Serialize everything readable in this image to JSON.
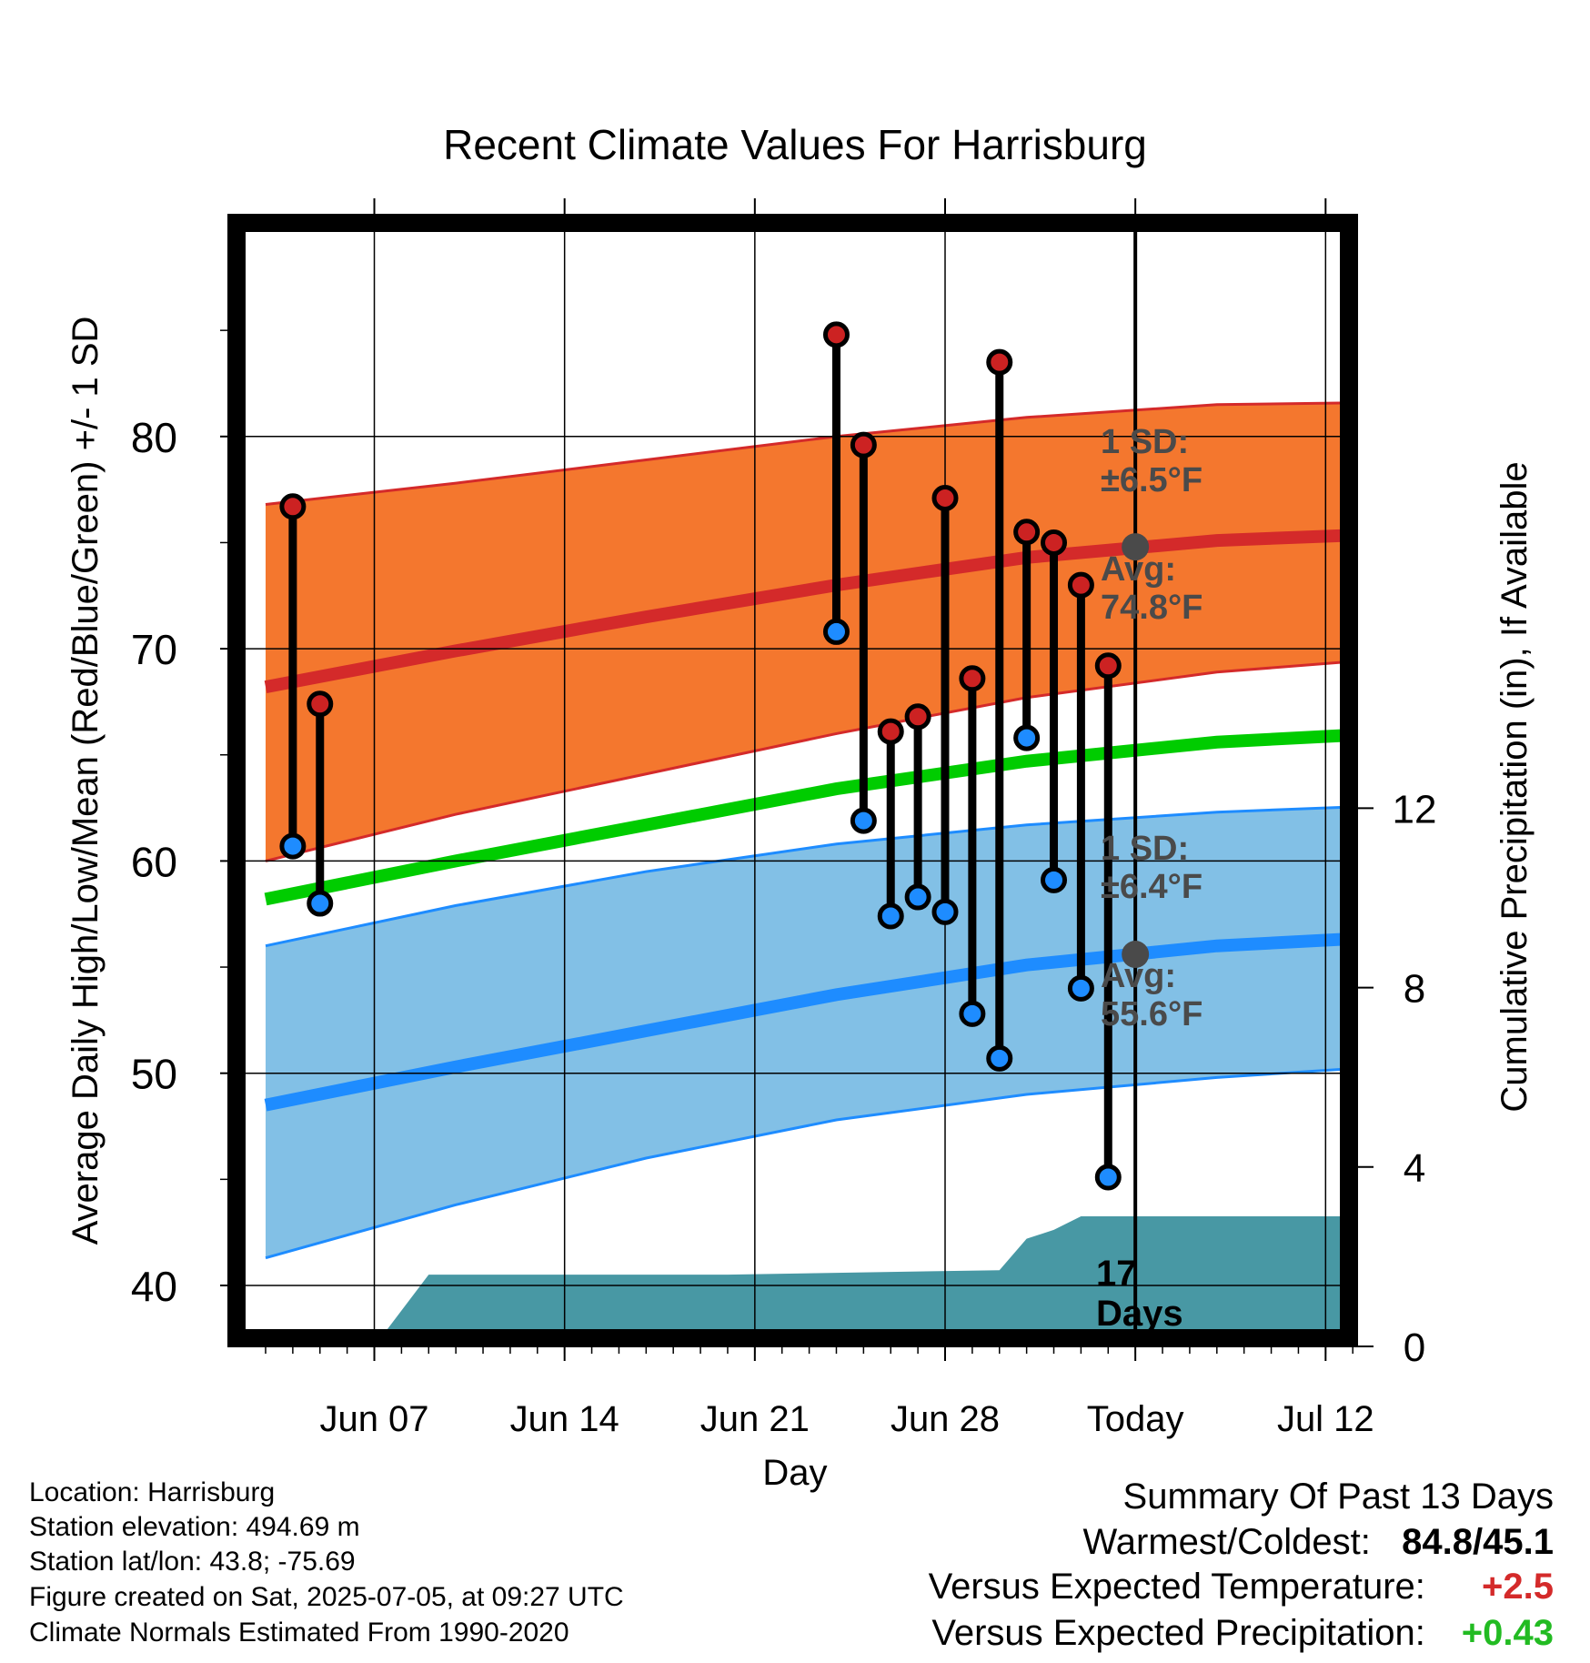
{
  "chart_data": {
    "type": "line",
    "title": "Recent Climate Values For Harrisburg",
    "xlabel": "Day",
    "ylabel": "Average Daily High/Low/Mean (Red/Blue/Green) +/- 1 SD",
    "y2label": "Cumulative Precipitation (in), If Available",
    "x_range": [
      "2025-06-03",
      "2025-07-14"
    ],
    "ylim": [
      37,
      90
    ],
    "y2lim": [
      0,
      25
    ],
    "x_ticks": [
      {
        "date": "2025-06-07",
        "label": "Jun 07"
      },
      {
        "date": "2025-06-14",
        "label": "Jun 14"
      },
      {
        "date": "2025-06-21",
        "label": "Jun 21"
      },
      {
        "date": "2025-06-28",
        "label": "Jun 28"
      },
      {
        "date": "2025-07-05",
        "label": "Today"
      },
      {
        "date": "2025-07-12",
        "label": "Jul 12"
      }
    ],
    "y_ticks": [
      40,
      50,
      60,
      70,
      80
    ],
    "y2_ticks": [
      0,
      4,
      8,
      12
    ],
    "grid": true,
    "today": "2025-07-05",
    "normals": {
      "dates": [
        "2025-06-03",
        "2025-06-10",
        "2025-06-17",
        "2025-06-24",
        "2025-07-01",
        "2025-07-08",
        "2025-07-14"
      ],
      "high_mean": [
        68.2,
        69.9,
        71.5,
        73.0,
        74.3,
        75.1,
        75.4
      ],
      "high_upper": [
        76.8,
        77.8,
        78.9,
        80.0,
        80.9,
        81.5,
        81.6
      ],
      "high_lower": [
        60.0,
        62.2,
        64.1,
        66.0,
        67.7,
        68.9,
        69.5
      ],
      "mean": [
        58.2,
        60.0,
        61.7,
        63.4,
        64.7,
        65.6,
        66.0
      ],
      "low_mean": [
        48.5,
        50.3,
        52.0,
        53.7,
        55.1,
        56.0,
        56.4
      ],
      "low_upper": [
        56.0,
        57.9,
        59.5,
        60.8,
        61.7,
        62.3,
        62.6
      ],
      "low_lower": [
        41.3,
        43.8,
        46.0,
        47.8,
        49.0,
        49.8,
        50.3
      ]
    },
    "observations": [
      {
        "date": "2025-06-04",
        "high": 76.7,
        "low": 60.7
      },
      {
        "date": "2025-06-05",
        "high": 67.4,
        "low": 58.0
      },
      {
        "date": "2025-06-24",
        "high": 84.8,
        "low": 70.8
      },
      {
        "date": "2025-06-25",
        "high": 79.6,
        "low": 61.9
      },
      {
        "date": "2025-06-26",
        "high": 66.1,
        "low": 57.4
      },
      {
        "date": "2025-06-27",
        "high": 66.8,
        "low": 58.3
      },
      {
        "date": "2025-06-28",
        "high": 77.1,
        "low": 57.6
      },
      {
        "date": "2025-06-29",
        "high": 68.6,
        "low": 52.8
      },
      {
        "date": "2025-06-30",
        "high": 83.5,
        "low": 50.7
      },
      {
        "date": "2025-07-01",
        "high": 75.5,
        "low": 65.8
      },
      {
        "date": "2025-07-02",
        "high": 75.0,
        "low": 59.1
      },
      {
        "date": "2025-07-03",
        "high": 73.0,
        "low": 54.0
      },
      {
        "date": "2025-07-04",
        "high": 69.2,
        "low": 45.1
      }
    ],
    "precipitation": {
      "dates": [
        "2025-06-07",
        "2025-06-09",
        "2025-06-20",
        "2025-06-25",
        "2025-06-30",
        "2025-07-01",
        "2025-07-02",
        "2025-07-03",
        "2025-07-14"
      ],
      "values": [
        0.0,
        1.6,
        1.6,
        1.65,
        1.7,
        2.4,
        2.6,
        2.9,
        2.9
      ]
    },
    "annotations": {
      "high_sd": "1 SD:\n±6.5°F",
      "high_avg": "Avg:\n74.8°F",
      "high_avg_value": 74.8,
      "low_sd": "1 SD:\n±6.4°F",
      "low_avg": "Avg:\n55.6°F",
      "low_avg_value": 55.6,
      "days": "17\nDays"
    },
    "colors": {
      "high_band": "#f4772e",
      "high_band_edge": "#d42a2a",
      "high_line": "#d42a2a",
      "low_band": "#82c0e6",
      "low_band_edge": "#1e8cff",
      "low_line": "#1e8cff",
      "mean_line": "#00cc00",
      "precip": "#4898a4",
      "high_marker": "#cc2222",
      "low_marker": "#1e8cff",
      "today_marker": "#4a4a4a",
      "annotation_text": "#4a4a4a"
    }
  },
  "info": {
    "location": "Location: Harrisburg",
    "elevation": "Station elevation: 494.69 m",
    "latlon": "Station lat/lon: 43.8; -75.69",
    "created": "Figure created on Sat, 2025-07-05, at 09:27 UTC",
    "normals": "Climate Normals Estimated From 1990-2020"
  },
  "summary": {
    "title": "Summary Of Past 13 Days",
    "warmest_label": "Warmest/Coldest:",
    "warmest_value": "84.8/45.1",
    "temp_label": "Versus Expected Temperature:",
    "temp_value": "+2.5",
    "temp_color": "#d42a2a",
    "precip_label": "Versus Expected Precipitation:",
    "precip_value": "+0.43",
    "precip_color": "#22bb22"
  }
}
